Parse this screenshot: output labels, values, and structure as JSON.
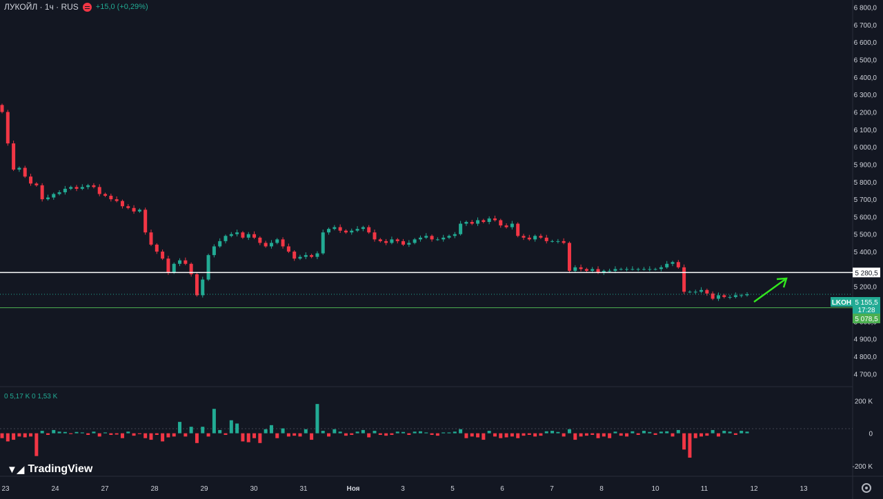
{
  "header": {
    "symbol_title": "ЛУКОЙЛ · 1ч · RUS",
    "change": "+15,0 (+0,29%)",
    "exchange_icon": "exchange-badge-icon"
  },
  "volume_legend": "0  5,17 K  0  1,53 K",
  "logo_text": "TradingView",
  "logo_icon": "tradingview-logo-icon",
  "settings_icon": "gear-icon",
  "price_labels": [
    "6 800,0",
    "6 700,0",
    "6 600,0",
    "6 500,0",
    "6 400,0",
    "6 300,0",
    "6 200,0",
    "6 100,0",
    "6 000,0",
    "5 900,0",
    "5 800,0",
    "5 700,0",
    "5 600,0",
    "5 500,0",
    "5 400,0",
    "5 200,0",
    "5 000,0",
    "4 900,0",
    "4 800,0",
    "4 700,0"
  ],
  "volume_axis_labels": [
    "200 K",
    "0",
    "-200 K"
  ],
  "time_labels": [
    "23",
    "24",
    "27",
    "28",
    "29",
    "30",
    "31",
    "Ноя",
    "3",
    "5",
    "6",
    "7",
    "8",
    "10",
    "11",
    "12",
    "13"
  ],
  "markers": {
    "resistance_level": "5 280,5",
    "current_price": "5 155,5",
    "countdown": "17:28",
    "ticker": "LKOH",
    "support_level": "5 078,5"
  },
  "colors": {
    "background": "#131722",
    "up": "#22ab94",
    "down": "#f23645",
    "resistance_line": "#ffffff",
    "support_line": "#4caf50",
    "arrow": "#32e61e"
  },
  "chart_data": {
    "type": "candlestick",
    "timeframe": "1h",
    "y_range": [
      4650,
      6810
    ],
    "volume_range": [
      -260000,
      240000
    ],
    "resistance": 5280.5,
    "support": 5078.5,
    "last_price": 5155.5,
    "closes": [
      6200,
      6020,
      5870,
      5880,
      5830,
      5790,
      5780,
      5700,
      5710,
      5730,
      5740,
      5760,
      5770,
      5760,
      5770,
      5780,
      5770,
      5730,
      5720,
      5700,
      5690,
      5660,
      5650,
      5630,
      5640,
      5510,
      5440,
      5400,
      5360,
      5280,
      5330,
      5350,
      5330,
      5270,
      5150,
      5240,
      5380,
      5430,
      5460,
      5490,
      5500,
      5510,
      5480,
      5500,
      5480,
      5450,
      5430,
      5450,
      5470,
      5430,
      5400,
      5360,
      5370,
      5380,
      5370,
      5390,
      5510,
      5530,
      5540,
      5520,
      5510,
      5520,
      5530,
      5540,
      5510,
      5470,
      5460,
      5450,
      5470,
      5460,
      5440,
      5450,
      5470,
      5480,
      5490,
      5470,
      5470,
      5480,
      5490,
      5500,
      5560,
      5570,
      5560,
      5580,
      5570,
      5590,
      5580,
      5550,
      5540,
      5560,
      5490,
      5480,
      5470,
      5490,
      5480,
      5460,
      5460,
      5460,
      5450,
      5290,
      5310,
      5300,
      5290,
      5300,
      5280,
      5290,
      5290,
      5300,
      5300,
      5300,
      5300,
      5300,
      5300,
      5300,
      5300,
      5310,
      5330,
      5340,
      5310,
      5170,
      5170,
      5170,
      5180,
      5160,
      5130,
      5150,
      5140,
      5140,
      5150,
      5150,
      5155.5
    ],
    "volumes": [
      -30000,
      -50000,
      -40000,
      -20000,
      -25000,
      -20000,
      -140000,
      15000,
      -10000,
      20000,
      10000,
      8000,
      -5000,
      8000,
      5000,
      -10000,
      10000,
      -20000,
      5000,
      -10000,
      -8000,
      -30000,
      10000,
      -15000,
      -5000,
      -30000,
      -40000,
      -10000,
      -50000,
      -25000,
      -20000,
      70000,
      -20000,
      40000,
      -60000,
      40000,
      -20000,
      150000,
      20000,
      -10000,
      80000,
      60000,
      -50000,
      -55000,
      -30000,
      -60000,
      25000,
      50000,
      -30000,
      30000,
      -20000,
      -15000,
      -20000,
      25000,
      -40000,
      180000,
      15000,
      -20000,
      25000,
      10000,
      -15000,
      -10000,
      10000,
      20000,
      -25000,
      15000,
      -10000,
      -15000,
      -10000,
      10000,
      8000,
      -10000,
      10000,
      12000,
      5000,
      -10000,
      -15000,
      5000,
      5000,
      10000,
      25000,
      -30000,
      -20000,
      -25000,
      -40000,
      15000,
      -20000,
      -30000,
      -25000,
      -20000,
      -30000,
      -15000,
      -10000,
      -20000,
      -15000,
      12000,
      15000,
      8000,
      -20000,
      25000,
      -40000,
      -20000,
      -15000,
      -10000,
      -30000,
      -20000,
      -30000,
      10000,
      -15000,
      -20000,
      12000,
      -10000,
      15000,
      8000,
      -10000,
      10000,
      12000,
      -20000,
      20000,
      -100000,
      -150000,
      -30000,
      -20000,
      -15000,
      20000,
      -20000,
      15000,
      10000,
      -10000,
      15000,
      10000
    ]
  }
}
